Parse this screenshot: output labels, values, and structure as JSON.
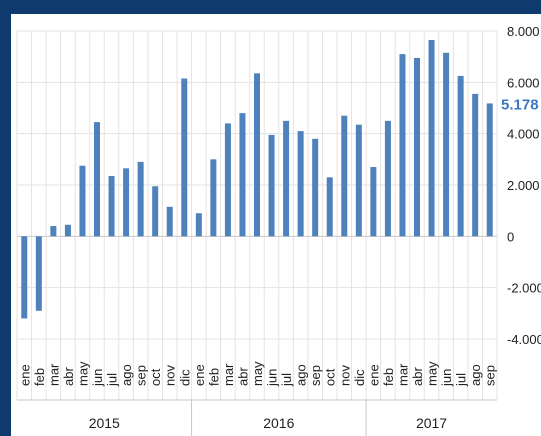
{
  "chart_data": {
    "type": "bar",
    "categories": [
      "ene",
      "feb",
      "mar",
      "abr",
      "may",
      "jun",
      "jul",
      "ago",
      "sep",
      "oct",
      "nov",
      "dic",
      "ene",
      "feb",
      "mar",
      "abr",
      "may",
      "jun",
      "jul",
      "ago",
      "sep",
      "oct",
      "nov",
      "dic",
      "ene",
      "feb",
      "mar",
      "abr",
      "may",
      "jun",
      "jul",
      "ago",
      "sep"
    ],
    "groups": [
      {
        "label": "2015",
        "count": 12
      },
      {
        "label": "2016",
        "count": 12
      },
      {
        "label": "2017",
        "count": 9
      }
    ],
    "values": [
      -3200,
      -2900,
      400,
      450,
      2750,
      4450,
      2350,
      2650,
      2900,
      1950,
      1150,
      6150,
      900,
      3000,
      4400,
      4800,
      6350,
      3950,
      4500,
      4100,
      3800,
      2300,
      4700,
      4350,
      2700,
      4500,
      7100,
      6950,
      7650,
      7150,
      6250,
      5550,
      5178
    ],
    "ylim": [
      -4000,
      8000
    ],
    "yticks": [
      -4000,
      -2000,
      0,
      2000,
      4000,
      6000,
      8000
    ],
    "ytick_labels": [
      "-4.000",
      "-2.000",
      "0",
      "2.000",
      "4.000",
      "6.000",
      "8.000"
    ],
    "last_value_label": "5.178",
    "bar_color": "#4f81bd",
    "highlight_color": "#3b78c3",
    "grid": true,
    "title": "",
    "xlabel": "",
    "ylabel": ""
  }
}
